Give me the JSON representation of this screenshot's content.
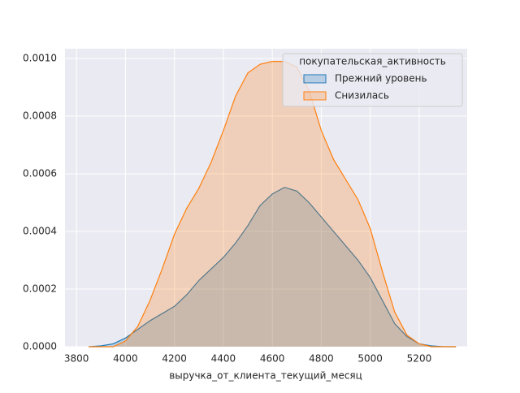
{
  "chart_data": {
    "type": "kde",
    "xlabel": "выручка_от_клиента_текущий_месяц",
    "x": [
      3850,
      3900,
      3950,
      4000,
      4050,
      4100,
      4150,
      4200,
      4250,
      4300,
      4350,
      4400,
      4450,
      4500,
      4550,
      4600,
      4650,
      4700,
      4750,
      4800,
      4850,
      4900,
      4950,
      5000,
      5050,
      5100,
      5150,
      5200,
      5250,
      5300,
      5350
    ],
    "series": [
      {
        "name": "Прежний уровень",
        "color": "#1f77b4",
        "values": [
          0,
          3e-06,
          1e-05,
          3e-05,
          6e-05,
          9e-05,
          0.000115,
          0.00014,
          0.00018,
          0.00023,
          0.00027,
          0.00031,
          0.00036,
          0.00042,
          0.00049,
          0.00053,
          0.000553,
          0.00054,
          0.0005,
          0.00045,
          0.0004,
          0.00035,
          0.0003,
          0.00024,
          0.00016,
          8e-05,
          3.5e-05,
          1e-05,
          3e-06,
          0,
          0
        ]
      },
      {
        "name": "Снизилась",
        "color": "#ff7f0e",
        "values": [
          0,
          0,
          0,
          2e-05,
          7e-05,
          0.00016,
          0.00027,
          0.00039,
          0.00048,
          0.00055,
          0.00064,
          0.00075,
          0.00087,
          0.00095,
          0.00098,
          0.00099,
          0.00099,
          0.00097,
          0.00089,
          0.00075,
          0.00065,
          0.00058,
          0.00051,
          0.00041,
          0.00026,
          0.00012,
          4e-05,
          1e-05,
          0,
          0,
          0
        ]
      }
    ],
    "legend_title": "покупательская_активность",
    "legend_loc": "upper right",
    "xlim": [
      3753,
      5396
    ],
    "ylim": [
      0,
      0.001034
    ],
    "xticks": [
      3800,
      4000,
      4200,
      4400,
      4600,
      4800,
      5000,
      5200
    ],
    "yticks": [
      {
        "value": 0,
        "label": "0.0000"
      },
      {
        "value": 0.0002,
        "label": "0.0002"
      },
      {
        "value": 0.0004,
        "label": "0.0004"
      },
      {
        "value": 0.0006,
        "label": "0.0006"
      },
      {
        "value": 0.0008,
        "label": "0.0008"
      },
      {
        "value": 0.001,
        "label": "0.0010"
      }
    ],
    "grid": true
  }
}
